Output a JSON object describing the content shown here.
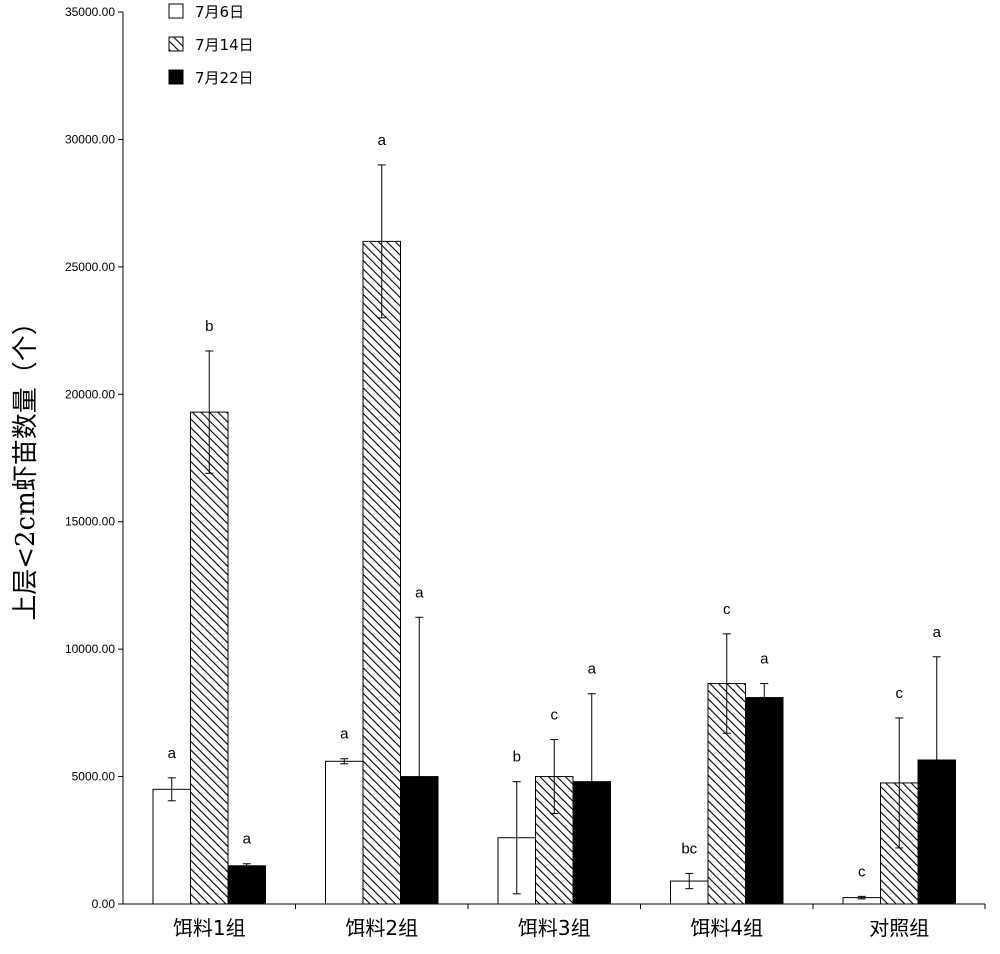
{
  "chart_data": {
    "type": "bar",
    "title": "",
    "xlabel": "",
    "ylabel": "上层<2cm虾苗数量（个）",
    "ylim": [
      0,
      35000
    ],
    "ytick_step": 5000,
    "ytick_labels": [
      "0.00",
      "5000.00",
      "10000.00",
      "15000.00",
      "20000.00",
      "25000.00",
      "30000.00",
      "35000.00"
    ],
    "grid": false,
    "legend_position": "top-left",
    "categories": [
      "饵料1组",
      "饵料2组",
      "饵料3组",
      "饵料4组",
      "对照组"
    ],
    "series": [
      {
        "name": "7月6日",
        "fill": "white",
        "values": [
          4500,
          5600,
          2600,
          900,
          250
        ],
        "errors": [
          450,
          100,
          2200,
          300,
          50
        ],
        "labels": [
          "a",
          "a",
          "b",
          "bc",
          "c"
        ]
      },
      {
        "name": "7月14日",
        "fill": "hatch",
        "values": [
          19300,
          26000,
          5000,
          8650,
          4750
        ],
        "errors": [
          2400,
          3000,
          1450,
          1950,
          2550
        ],
        "labels": [
          "b",
          "a",
          "c",
          "c",
          "c"
        ]
      },
      {
        "name": "7月22日",
        "fill": "black",
        "values": [
          1500,
          5000,
          4800,
          8100,
          5650
        ],
        "errors": [
          80,
          6250,
          3450,
          550,
          4050
        ],
        "labels": [
          "a",
          "a",
          "a",
          "a",
          "a"
        ]
      }
    ]
  }
}
